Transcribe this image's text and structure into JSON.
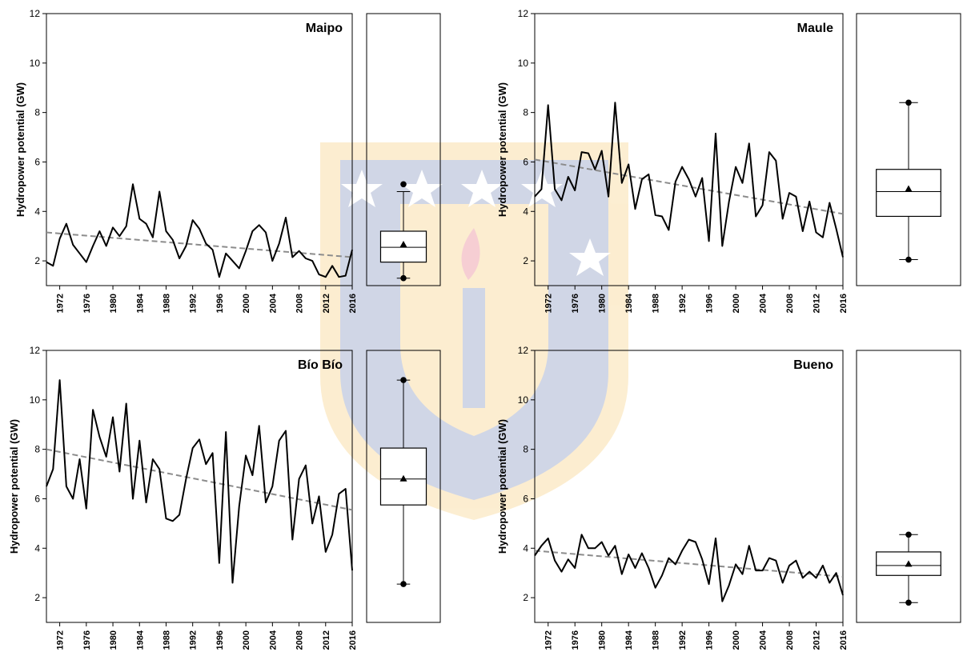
{
  "chart_data": [
    {
      "type": "line",
      "title": "Maipo",
      "ylabel": "Hydropower potential (GW)",
      "ylim": [
        1,
        12
      ],
      "yticks": [
        2,
        4,
        6,
        8,
        10,
        12
      ],
      "xlim": [
        1970,
        2016
      ],
      "xticks": [
        "1972",
        "1976",
        "1980",
        "1984",
        "1988",
        "1992",
        "1996",
        "2000",
        "2004",
        "2008",
        "2012",
        "2016"
      ],
      "x": [
        1970,
        1971,
        1972,
        1973,
        1974,
        1975,
        1976,
        1977,
        1978,
        1979,
        1980,
        1981,
        1982,
        1983,
        1984,
        1985,
        1986,
        1987,
        1988,
        1989,
        1990,
        1991,
        1992,
        1993,
        1994,
        1995,
        1996,
        1997,
        1998,
        1999,
        2000,
        2001,
        2002,
        2003,
        2004,
        2005,
        2006,
        2007,
        2008,
        2009,
        2010,
        2011,
        2012,
        2013,
        2014,
        2015,
        2016
      ],
      "series": [
        {
          "values": [
            1.95,
            1.8,
            2.9,
            3.5,
            2.65,
            2.3,
            1.95,
            2.6,
            3.2,
            2.6,
            3.35,
            3.0,
            3.4,
            5.1,
            3.7,
            3.5,
            2.95,
            4.8,
            3.2,
            2.85,
            2.1,
            2.6,
            3.65,
            3.3,
            2.7,
            2.45,
            1.35,
            2.3,
            2.0,
            1.7,
            2.4,
            3.2,
            3.45,
            3.15,
            2.0,
            2.7,
            3.75,
            2.15,
            2.4,
            2.1,
            2.0,
            1.45,
            1.35,
            1.8,
            1.35,
            1.4,
            2.45
          ]
        }
      ],
      "trend": {
        "start": [
          1970,
          3.15
        ],
        "end": [
          2016,
          2.15
        ]
      },
      "boxplot": {
        "min": 1.3,
        "q1": 1.95,
        "median": 2.55,
        "mean": 2.65,
        "q3": 3.2,
        "whisker_high": 4.8,
        "max": 5.1
      }
    },
    {
      "type": "line",
      "title": "Maule",
      "ylabel": "Hydropower potential (GW)",
      "ylim": [
        1,
        12
      ],
      "yticks": [
        2,
        4,
        6,
        8,
        10,
        12
      ],
      "xlim": [
        1970,
        2016
      ],
      "xticks": [
        "1972",
        "1976",
        "1980",
        "1984",
        "1988",
        "1992",
        "1996",
        "2000",
        "2004",
        "2008",
        "2012",
        "2016"
      ],
      "x": [
        1970,
        1971,
        1972,
        1973,
        1974,
        1975,
        1976,
        1977,
        1978,
        1979,
        1980,
        1981,
        1982,
        1983,
        1984,
        1985,
        1986,
        1987,
        1988,
        1989,
        1990,
        1991,
        1992,
        1993,
        1994,
        1995,
        1996,
        1997,
        1998,
        1999,
        2000,
        2001,
        2002,
        2003,
        2004,
        2005,
        2006,
        2007,
        2008,
        2009,
        2010,
        2011,
        2012,
        2013,
        2014,
        2015,
        2016
      ],
      "series": [
        {
          "values": [
            4.6,
            4.9,
            8.3,
            4.9,
            4.45,
            5.4,
            4.85,
            6.4,
            6.35,
            5.7,
            6.45,
            4.6,
            8.4,
            5.15,
            5.9,
            4.1,
            5.3,
            5.5,
            3.85,
            3.8,
            3.25,
            5.2,
            5.8,
            5.3,
            4.6,
            5.35,
            2.8,
            7.15,
            2.6,
            4.4,
            5.8,
            5.15,
            6.75,
            3.8,
            4.25,
            6.4,
            6.05,
            3.7,
            4.75,
            4.6,
            3.2,
            4.4,
            3.15,
            2.95,
            4.35,
            3.3,
            2.15
          ]
        }
      ],
      "trend": {
        "start": [
          1970,
          6.1
        ],
        "end": [
          2016,
          3.9
        ]
      },
      "boxplot": {
        "min": 2.05,
        "q1": 3.8,
        "median": 4.8,
        "mean": 4.9,
        "q3": 5.7,
        "whisker_high": 8.4,
        "max": 8.4
      }
    },
    {
      "type": "line",
      "title": "Bío Bío",
      "ylabel": "Hydropower potential (GW)",
      "ylim": [
        1,
        12
      ],
      "yticks": [
        2,
        4,
        6,
        8,
        10,
        12
      ],
      "xlim": [
        1970,
        2016
      ],
      "xticks": [
        "1972",
        "1976",
        "1980",
        "1984",
        "1988",
        "1992",
        "1996",
        "2000",
        "2004",
        "2008",
        "2012",
        "2016"
      ],
      "x": [
        1970,
        1971,
        1972,
        1973,
        1974,
        1975,
        1976,
        1977,
        1978,
        1979,
        1980,
        1981,
        1982,
        1983,
        1984,
        1985,
        1986,
        1987,
        1988,
        1989,
        1990,
        1991,
        1992,
        1993,
        1994,
        1995,
        1996,
        1997,
        1998,
        1999,
        2000,
        2001,
        2002,
        2003,
        2004,
        2005,
        2006,
        2007,
        2008,
        2009,
        2010,
        2011,
        2012,
        2013,
        2014,
        2015,
        2016
      ],
      "series": [
        {
          "values": [
            6.5,
            7.2,
            10.8,
            6.5,
            6.0,
            7.6,
            5.6,
            9.6,
            8.5,
            7.7,
            9.3,
            7.1,
            9.85,
            6.0,
            8.35,
            5.85,
            7.6,
            7.2,
            5.2,
            5.1,
            5.35,
            6.8,
            8.05,
            8.4,
            7.4,
            7.85,
            3.4,
            8.7,
            2.6,
            5.7,
            7.75,
            6.95,
            8.95,
            5.85,
            6.5,
            8.35,
            8.75,
            4.35,
            6.8,
            7.35,
            5.0,
            6.1,
            3.85,
            4.55,
            6.2,
            6.4,
            3.1
          ]
        }
      ],
      "trend": {
        "start": [
          1970,
          8.0
        ],
        "end": [
          2016,
          5.55
        ]
      },
      "boxplot": {
        "min": 2.55,
        "q1": 5.75,
        "median": 6.8,
        "mean": 6.8,
        "q3": 8.05,
        "whisker_high": 10.8,
        "max": 10.8
      }
    },
    {
      "type": "line",
      "title": "Bueno",
      "ylabel": "Hydropower potential (GW)",
      "ylim": [
        1,
        12
      ],
      "yticks": [
        2,
        4,
        6,
        8,
        10,
        12
      ],
      "xlim": [
        1970,
        2016
      ],
      "xticks": [
        "1972",
        "1976",
        "1980",
        "1984",
        "1988",
        "1992",
        "1996",
        "2000",
        "2004",
        "2008",
        "2012",
        "2016"
      ],
      "x": [
        1970,
        1971,
        1972,
        1973,
        1974,
        1975,
        1976,
        1977,
        1978,
        1979,
        1980,
        1981,
        1982,
        1983,
        1984,
        1985,
        1986,
        1987,
        1988,
        1989,
        1990,
        1991,
        1992,
        1993,
        1994,
        1995,
        1996,
        1997,
        1998,
        1999,
        2000,
        2001,
        2002,
        2003,
        2004,
        2005,
        2006,
        2007,
        2008,
        2009,
        2010,
        2011,
        2012,
        2013,
        2014,
        2015,
        2016
      ],
      "series": [
        {
          "values": [
            3.7,
            4.1,
            4.4,
            3.5,
            3.05,
            3.55,
            3.2,
            4.55,
            4.0,
            4.0,
            4.25,
            3.7,
            4.1,
            2.95,
            3.75,
            3.2,
            3.8,
            3.2,
            2.4,
            2.9,
            3.6,
            3.35,
            3.9,
            4.35,
            4.25,
            3.55,
            2.55,
            4.4,
            1.85,
            2.5,
            3.35,
            2.95,
            4.1,
            3.1,
            3.1,
            3.6,
            3.5,
            2.6,
            3.3,
            3.5,
            2.8,
            3.05,
            2.8,
            3.3,
            2.6,
            3.0,
            2.1
          ]
        }
      ],
      "trend": {
        "start": [
          1970,
          3.9
        ],
        "end": [
          2016,
          2.85
        ]
      },
      "boxplot": {
        "min": 1.8,
        "q1": 2.9,
        "median": 3.3,
        "mean": 3.35,
        "q3": 3.85,
        "whisker_high": 4.55,
        "max": 4.55
      }
    }
  ]
}
